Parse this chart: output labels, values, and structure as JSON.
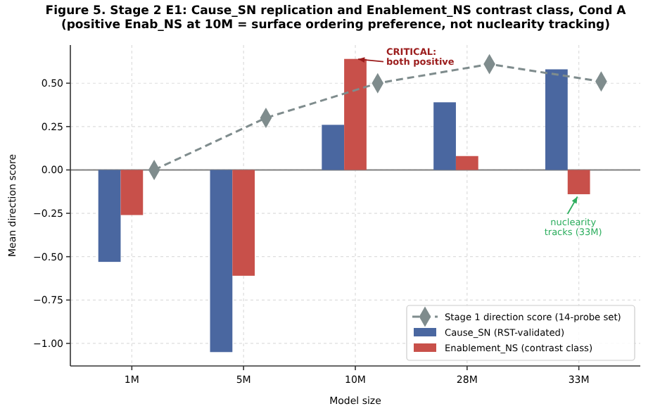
{
  "chart_data": {
    "type": "bar",
    "title": "Figure 5. Stage 2 E1: Cause_SN replication and Enablement_NS contrast class, Cond A",
    "subtitle": "(positive Enab_NS at 10M = surface ordering preference, not nuclearity tracking)",
    "xlabel": "Model size",
    "ylabel": "Mean direction score",
    "categories": [
      "1M",
      "5M",
      "10M",
      "28M",
      "33M"
    ],
    "series": [
      {
        "name": "Stage 1 direction score (14-probe set)",
        "type": "line",
        "color": "#7f8c8d",
        "values": [
          0.0,
          0.3,
          0.5,
          0.61,
          0.51
        ],
        "marker": "diamond",
        "line_style": "dashed"
      },
      {
        "name": "Cause_SN (RST-validated)",
        "color": "#4a67a0",
        "values": [
          -0.53,
          -1.05,
          0.26,
          0.39,
          0.58
        ]
      },
      {
        "name": "Enablement_NS (contrast class)",
        "color": "#c8504a",
        "values": [
          -0.26,
          -0.61,
          0.64,
          0.08,
          -0.14
        ]
      }
    ],
    "ylim": [
      -1.13,
      0.72
    ],
    "yticks": [
      {
        "value": -1,
        "label": "−1.00"
      },
      {
        "value": -0.75,
        "label": "−0.75"
      },
      {
        "value": -0.5,
        "label": "−0.50"
      },
      {
        "value": -0.25,
        "label": "−0.25"
      },
      {
        "value": 0,
        "label": "0.00"
      },
      {
        "value": 0.25,
        "label": "0.25"
      },
      {
        "value": 0.5,
        "label": "0.50"
      }
    ],
    "ref_lines": [
      {
        "axis": "y",
        "value": 0,
        "color": "#808080"
      }
    ],
    "annotations": [
      {
        "text": "CRITICAL:\nboth positive",
        "x": "10M",
        "y": 0.64
      },
      {
        "text": "nuclearity\ntracks (33M)",
        "x": "33M",
        "y": -0.14
      }
    ],
    "grid": true,
    "legend": "bottom right"
  }
}
